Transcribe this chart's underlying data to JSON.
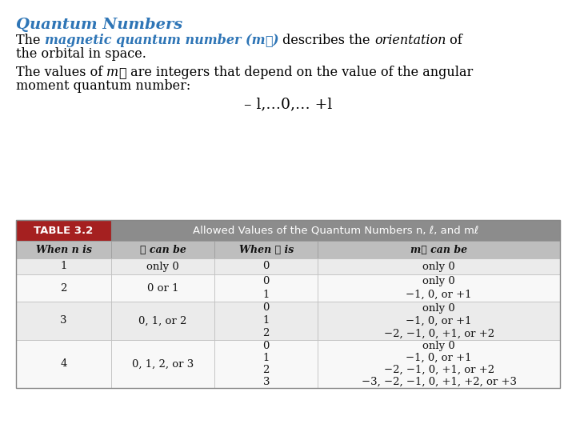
{
  "title": "Quantum Numbers",
  "title_color": "#2E75B6",
  "bg_color": "#FFFFFF",
  "table_header_left": "TABLE 3.2",
  "table_header_right": "Allowed Values of the Quantum Numbers n, ℓ, and mℓ",
  "table_col_headers": [
    "When n is",
    "ℓ can be",
    "When ℓ is",
    "mℓ can be"
  ],
  "table_data": [
    {
      "n": "1",
      "l_can_be": "only 0",
      "l_values": [
        "0"
      ],
      "ml_values": [
        "only 0"
      ]
    },
    {
      "n": "2",
      "l_can_be": "0 or 1",
      "l_values": [
        "0",
        "1"
      ],
      "ml_values": [
        "only 0",
        "−1, 0, or +1"
      ]
    },
    {
      "n": "3",
      "l_can_be": "0, 1, or 2",
      "l_values": [
        "0",
        "1",
        "2"
      ],
      "ml_values": [
        "only 0",
        "−1, 0, or +1",
        "−2, −1, 0, +1, or +2"
      ]
    },
    {
      "n": "4",
      "l_can_be": "0, 1, 2, or 3",
      "l_values": [
        "0",
        "1",
        "2",
        "3"
      ],
      "ml_values": [
        "only 0",
        "−1, 0, or +1",
        "−2, −1, 0, +1, or +2",
        "−3, −2, −1, 0, +1, +2, or +3"
      ]
    }
  ],
  "table_header_bg": "#8C8C8C",
  "table_header_left_bg": "#A52020",
  "table_col_header_bg": "#BEBEBE",
  "table_row_bg_light": "#EBEBEB",
  "table_row_bg_white": "#F8F8F8",
  "table_border_color": "#AAAAAA"
}
